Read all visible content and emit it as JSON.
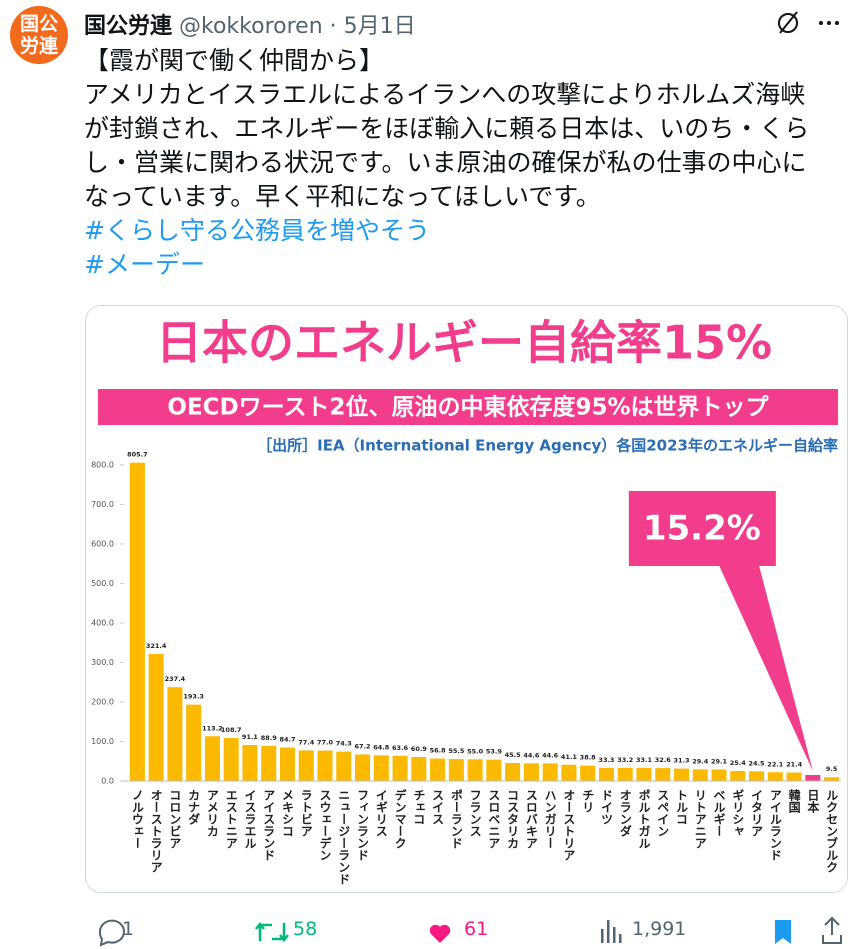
{
  "tweet": {
    "avatar_label": "国公労連",
    "name": "国公労連",
    "handle": "@kokkororen",
    "separator": "·",
    "date": "5月1日",
    "body_lines": [
      "【霞が関で働く仲間から】",
      "アメリカとイスラエルによるイランへの攻撃によりホルムズ海峡",
      "が封鎖され、エネルギーをほぼ輸入に頼る日本は、いのち・くら",
      "し・営業に関わる状況です。いま原油の確保が私の仕事の中心に",
      "なっています。早く平和になってほしいです。"
    ],
    "hashtags": [
      "#くらし守る公務員を増やそう",
      "#メーデー"
    ],
    "stats": {
      "replies": "1",
      "reposts": "58",
      "likes": "61",
      "views": "1,991"
    }
  },
  "chart_data": {
    "type": "bar",
    "title": "日本のエネルギー自給率15%",
    "subtitle": "OECDワースト2位、原油の中東依存度95%は世界トップ",
    "source": "［出所］IEA（International Energy Agency）各国2023年のエネルギー自給率",
    "categories": [
      "ノルウェー",
      "オーストラリア",
      "コロンビア",
      "カナダ",
      "アメリカ",
      "エストニア",
      "イスラエル",
      "アイスランド",
      "メキシコ",
      "ラトビア",
      "スウェーデン",
      "ニュージーランド",
      "フィンランド",
      "イギリス",
      "デンマーク",
      "チェコ",
      "スイス",
      "ポーランド",
      "フランス",
      "スロベニア",
      "コスタリカ",
      "スロバキア",
      "ハンガリー",
      "オーストリア",
      "チリ",
      "ドイツ",
      "オランダ",
      "ポルトガル",
      "スペイン",
      "トルコ",
      "リトアニア",
      "ベルギー",
      "ギリシャ",
      "イタリア",
      "アイルランド",
      "韓国",
      "日本",
      "ルクセンブルク"
    ],
    "values": [
      805.7,
      321.4,
      237.4,
      193.3,
      113.2,
      108.7,
      91.1,
      88.9,
      84.7,
      77.4,
      77.0,
      74.3,
      67.2,
      64.8,
      63.6,
      60.9,
      56.8,
      55.5,
      55.0,
      53.9,
      45.5,
      44.6,
      44.6,
      41.1,
      38.8,
      33.3,
      33.2,
      33.1,
      32.6,
      31.3,
      29.4,
      29.1,
      25.4,
      24.5,
      22.1,
      21.4,
      15.2,
      9.5
    ],
    "value_labels": [
      "805.7",
      "321.4",
      "237.4",
      "193.3",
      "113.2",
      "108.7",
      "91.1",
      "88.9",
      "84.7",
      "77.4",
      "77.0",
      "74.3",
      "67.2",
      "64.8",
      "63.6",
      "60.9",
      "56.8",
      "55.5",
      "55.0",
      "53.9",
      "45.5",
      "44.6",
      "44.6",
      "41.1",
      "38.8",
      "33.3",
      "33.2",
      "33.1",
      "32.6",
      "31.3",
      "29.4",
      "29.1",
      "25.4",
      "24.5",
      "22.1",
      "21.4",
      "15.2%",
      "9.5"
    ],
    "colors": [
      "#fbb900",
      "#fbb900",
      "#fbb900",
      "#fbb900",
      "#fbb900",
      "#fbb900",
      "#fbb900",
      "#fbb900",
      "#fbb900",
      "#fbb900",
      "#fbb900",
      "#fbb900",
      "#fbb900",
      "#fbb900",
      "#fbb900",
      "#fbb900",
      "#fbb900",
      "#fbb900",
      "#fbb900",
      "#fbb900",
      "#fbb900",
      "#fbb900",
      "#fbb900",
      "#fbb900",
      "#fbb900",
      "#fbb900",
      "#fbb900",
      "#fbb900",
      "#fbb900",
      "#fbb900",
      "#fbb900",
      "#fbb900",
      "#fbb900",
      "#fbb900",
      "#fbb900",
      "#fbb900",
      "#f23d8c",
      "#fbb900"
    ],
    "ylim": [
      0,
      820
    ],
    "yticks": [
      {
        "value": 0,
        "label": "0.0"
      },
      {
        "value": 100,
        "label": "100.0"
      },
      {
        "value": 200,
        "label": "200.0"
      },
      {
        "value": 300,
        "label": "300.0"
      },
      {
        "value": 400,
        "label": "400.0"
      },
      {
        "value": 500,
        "label": "500.0"
      },
      {
        "value": 600,
        "label": "600.0"
      },
      {
        "value": 700,
        "label": "700.0"
      },
      {
        "value": 800,
        "label": "800.0"
      }
    ],
    "grid": false
  }
}
